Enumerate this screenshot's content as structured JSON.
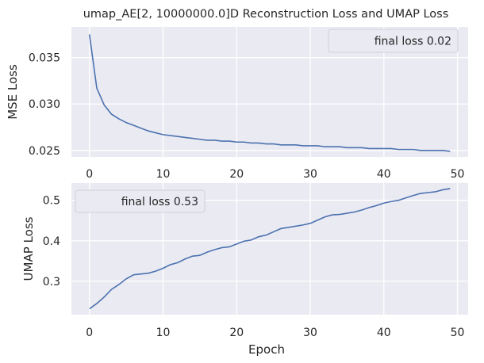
{
  "chart_data": [
    {
      "type": "line",
      "title": "umap_AE[2, 10000000.0]D Reconstruction Loss and UMAP Loss",
      "xlabel": "",
      "ylabel": "MSE Loss",
      "xlim": [
        -2.45,
        51.45
      ],
      "ylim": [
        0.0243,
        0.0383
      ],
      "x_ticks": [
        "0",
        "10",
        "20",
        "30",
        "40",
        "50"
      ],
      "x_tick_values": [
        0,
        10,
        20,
        30,
        40,
        50
      ],
      "y_ticks": [
        "0.025",
        "0.030",
        "0.035"
      ],
      "y_tick_values": [
        0.025,
        0.03,
        0.035
      ],
      "grid": true,
      "legend_position": "top-right",
      "legend_text": "final loss 0.02",
      "color": "#4c72b0",
      "series": [
        {
          "x": [
            0,
            1,
            2,
            3,
            4,
            5,
            6,
            7,
            8,
            9,
            10,
            11,
            12,
            13,
            14,
            15,
            16,
            17,
            18,
            19,
            20,
            21,
            22,
            23,
            24,
            25,
            26,
            27,
            28,
            29,
            30,
            31,
            32,
            33,
            34,
            35,
            36,
            37,
            38,
            39,
            40,
            41,
            42,
            43,
            44,
            45,
            46,
            47,
            48,
            49
          ],
          "values": [
            0.0375,
            0.0317,
            0.0299,
            0.0289,
            0.0284,
            0.028,
            0.0277,
            0.0274,
            0.0271,
            0.0269,
            0.0267,
            0.0266,
            0.0265,
            0.0264,
            0.0263,
            0.0262,
            0.0261,
            0.0261,
            0.026,
            0.026,
            0.0259,
            0.0259,
            0.0258,
            0.0258,
            0.0257,
            0.0257,
            0.0256,
            0.0256,
            0.0256,
            0.0255,
            0.0255,
            0.0255,
            0.0254,
            0.0254,
            0.0254,
            0.0253,
            0.0253,
            0.0253,
            0.0252,
            0.0252,
            0.0252,
            0.0252,
            0.0251,
            0.0251,
            0.0251,
            0.025,
            0.025,
            0.025,
            0.025,
            0.0249
          ]
        }
      ]
    },
    {
      "type": "line",
      "title": "",
      "xlabel": "Epoch",
      "ylabel": "UMAP Loss",
      "xlim": [
        -2.45,
        51.45
      ],
      "ylim": [
        0.2175,
        0.5425
      ],
      "x_ticks": [
        "0",
        "10",
        "20",
        "30",
        "40",
        "50"
      ],
      "x_tick_values": [
        0,
        10,
        20,
        30,
        40,
        50
      ],
      "y_ticks": [
        "0.3",
        "0.4",
        "0.5"
      ],
      "y_tick_values": [
        0.3,
        0.4,
        0.5
      ],
      "grid": true,
      "legend_position": "top-left",
      "legend_text": "final loss 0.53",
      "color": "#4c72b0",
      "series": [
        {
          "x": [
            0,
            1,
            2,
            3,
            4,
            5,
            6,
            7,
            8,
            9,
            10,
            11,
            12,
            13,
            14,
            15,
            16,
            17,
            18,
            19,
            20,
            21,
            22,
            23,
            24,
            25,
            26,
            27,
            28,
            29,
            30,
            31,
            32,
            33,
            34,
            35,
            36,
            37,
            38,
            39,
            40,
            41,
            42,
            43,
            44,
            45,
            46,
            47,
            48,
            49
          ],
          "values": [
            0.232,
            0.245,
            0.261,
            0.28,
            0.292,
            0.306,
            0.316,
            0.318,
            0.32,
            0.325,
            0.332,
            0.341,
            0.346,
            0.355,
            0.362,
            0.364,
            0.372,
            0.378,
            0.383,
            0.385,
            0.392,
            0.399,
            0.402,
            0.41,
            0.414,
            0.422,
            0.43,
            0.433,
            0.436,
            0.439,
            0.443,
            0.451,
            0.459,
            0.464,
            0.465,
            0.468,
            0.471,
            0.476,
            0.482,
            0.487,
            0.493,
            0.497,
            0.5,
            0.506,
            0.512,
            0.517,
            0.519,
            0.521,
            0.526,
            0.529
          ]
        }
      ]
    }
  ]
}
